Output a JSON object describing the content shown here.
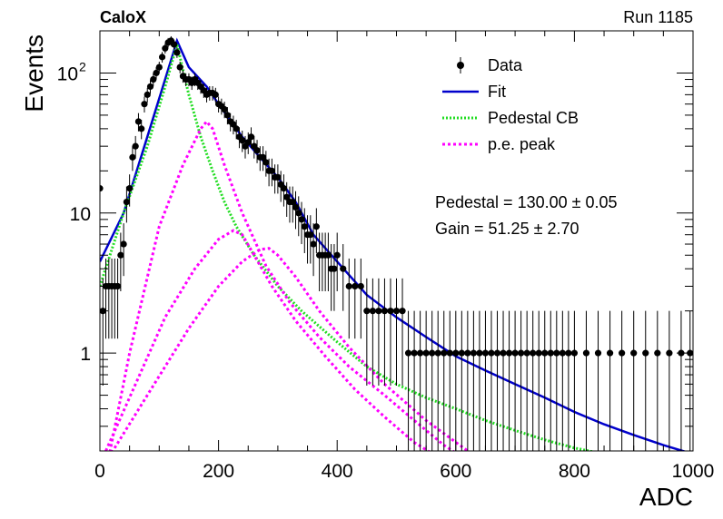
{
  "header": {
    "experiment": "CaloX",
    "run": "Run 1185"
  },
  "stats": {
    "pedestal": "Pedestal = 130.00 ± 0.05",
    "gain": "Gain = 51.25 ± 2.70"
  },
  "colors": {
    "data": "#000000",
    "fit": "#0000cc",
    "pedestal_cb": "#22dd22",
    "pe_peak": "#ff00ff"
  },
  "chart_data": {
    "type": "scatter",
    "title": "",
    "xlabel": "ADC",
    "ylabel": "Events",
    "xlim": [
      0,
      1000
    ],
    "ylim": [
      0.2,
      200
    ],
    "yscale": "log",
    "legend_position": "top-right",
    "x_ticks": [
      {
        "value": 0,
        "label": "0"
      },
      {
        "value": 200,
        "label": "200"
      },
      {
        "value": 400,
        "label": "400"
      },
      {
        "value": 600,
        "label": "600"
      },
      {
        "value": 800,
        "label": "800"
      },
      {
        "value": 1000,
        "label": "1000"
      }
    ],
    "y_ticks": [
      {
        "value": 1,
        "label": "1"
      },
      {
        "value": 10,
        "label": "10"
      },
      {
        "value": 100,
        "label": "10",
        "sup": "2"
      }
    ],
    "legend": [
      {
        "label": "Data",
        "kind": "points"
      },
      {
        "label": "Fit",
        "kind": "fit"
      },
      {
        "label": "Pedestal CB",
        "kind": "ped"
      },
      {
        "label": "p.e. peak",
        "kind": "pe"
      }
    ],
    "series": [
      {
        "name": "Data",
        "kind": "points",
        "points": [
          [
            0,
            15
          ],
          [
            5,
            2
          ],
          [
            10,
            3
          ],
          [
            15,
            3
          ],
          [
            20,
            3
          ],
          [
            25,
            3
          ],
          [
            30,
            3
          ],
          [
            35,
            5
          ],
          [
            40,
            6
          ],
          [
            45,
            12
          ],
          [
            50,
            15
          ],
          [
            55,
            25
          ],
          [
            60,
            30
          ],
          [
            65,
            45
          ],
          [
            70,
            40
          ],
          [
            75,
            60
          ],
          [
            80,
            70
          ],
          [
            85,
            80
          ],
          [
            90,
            90
          ],
          [
            95,
            100
          ],
          [
            100,
            110
          ],
          [
            105,
            130
          ],
          [
            110,
            150
          ],
          [
            115,
            165
          ],
          [
            120,
            170
          ],
          [
            125,
            160
          ],
          [
            130,
            140
          ],
          [
            135,
            110
          ],
          [
            140,
            95
          ],
          [
            145,
            90
          ],
          [
            150,
            90
          ],
          [
            155,
            85
          ],
          [
            160,
            90
          ],
          [
            165,
            85
          ],
          [
            170,
            80
          ],
          [
            175,
            75
          ],
          [
            180,
            70
          ],
          [
            185,
            72
          ],
          [
            190,
            72
          ],
          [
            195,
            70
          ],
          [
            200,
            60
          ],
          [
            205,
            58
          ],
          [
            210,
            55
          ],
          [
            215,
            50
          ],
          [
            220,
            45
          ],
          [
            225,
            43
          ],
          [
            230,
            40
          ],
          [
            235,
            35
          ],
          [
            240,
            33
          ],
          [
            245,
            30
          ],
          [
            250,
            32
          ],
          [
            255,
            35
          ],
          [
            260,
            30
          ],
          [
            265,
            28
          ],
          [
            270,
            25
          ],
          [
            275,
            25
          ],
          [
            280,
            23
          ],
          [
            285,
            20
          ],
          [
            290,
            20
          ],
          [
            295,
            18
          ],
          [
            300,
            18
          ],
          [
            305,
            16
          ],
          [
            310,
            15
          ],
          [
            315,
            13
          ],
          [
            320,
            12
          ],
          [
            325,
            12
          ],
          [
            330,
            11
          ],
          [
            335,
            10
          ],
          [
            340,
            9
          ],
          [
            345,
            8
          ],
          [
            350,
            7
          ],
          [
            355,
            7
          ],
          [
            360,
            6
          ],
          [
            365,
            8
          ],
          [
            370,
            5
          ],
          [
            375,
            5
          ],
          [
            380,
            5
          ],
          [
            385,
            5
          ],
          [
            390,
            4
          ],
          [
            395,
            4
          ],
          [
            400,
            5
          ],
          [
            410,
            4
          ],
          [
            420,
            3
          ],
          [
            430,
            3
          ],
          [
            440,
            3
          ],
          [
            450,
            2
          ],
          [
            460,
            2
          ],
          [
            470,
            2
          ],
          [
            480,
            2
          ],
          [
            490,
            2
          ],
          [
            500,
            2
          ],
          [
            510,
            2
          ],
          [
            520,
            1
          ],
          [
            530,
            1
          ],
          [
            540,
            1
          ],
          [
            550,
            1
          ],
          [
            560,
            1
          ],
          [
            570,
            1
          ],
          [
            580,
            1
          ],
          [
            590,
            1
          ],
          [
            600,
            1
          ],
          [
            610,
            1
          ],
          [
            620,
            1
          ],
          [
            630,
            1
          ],
          [
            640,
            1
          ],
          [
            650,
            1
          ],
          [
            660,
            1
          ],
          [
            670,
            1
          ],
          [
            680,
            1
          ],
          [
            690,
            1
          ],
          [
            700,
            1
          ],
          [
            710,
            1
          ],
          [
            720,
            1
          ],
          [
            730,
            1
          ],
          [
            740,
            1
          ],
          [
            750,
            1
          ],
          [
            760,
            1
          ],
          [
            770,
            1
          ],
          [
            780,
            1
          ],
          [
            790,
            1
          ],
          [
            800,
            1
          ],
          [
            820,
            1
          ],
          [
            840,
            1
          ],
          [
            860,
            1
          ],
          [
            880,
            1
          ],
          [
            900,
            1
          ],
          [
            920,
            1
          ],
          [
            940,
            1
          ],
          [
            960,
            1
          ],
          [
            980,
            1
          ],
          [
            995,
            1
          ]
        ]
      },
      {
        "name": "Fit",
        "kind": "fit",
        "points": [
          [
            0,
            4.5
          ],
          [
            40,
            10
          ],
          [
            80,
            35
          ],
          [
            110,
            90
          ],
          [
            130,
            170
          ],
          [
            150,
            110
          ],
          [
            180,
            80
          ],
          [
            200,
            60
          ],
          [
            240,
            35
          ],
          [
            270,
            25
          ],
          [
            300,
            18
          ],
          [
            330,
            12
          ],
          [
            360,
            7
          ],
          [
            400,
            4.5
          ],
          [
            450,
            2.6
          ],
          [
            500,
            1.8
          ],
          [
            550,
            1.3
          ],
          [
            600,
            0.95
          ],
          [
            650,
            0.75
          ],
          [
            700,
            0.6
          ],
          [
            750,
            0.48
          ],
          [
            800,
            0.38
          ],
          [
            850,
            0.31
          ],
          [
            900,
            0.26
          ],
          [
            950,
            0.22
          ],
          [
            1000,
            0.19
          ]
        ]
      },
      {
        "name": "Pedestal CB",
        "kind": "ped",
        "points": [
          [
            0,
            3
          ],
          [
            40,
            10
          ],
          [
            80,
            30
          ],
          [
            110,
            80
          ],
          [
            130,
            160
          ],
          [
            150,
            70
          ],
          [
            170,
            35
          ],
          [
            190,
            20
          ],
          [
            210,
            12
          ],
          [
            230,
            8
          ],
          [
            260,
            5
          ],
          [
            300,
            3
          ],
          [
            340,
            2
          ],
          [
            400,
            1.2
          ],
          [
            450,
            0.8
          ],
          [
            500,
            0.6
          ],
          [
            550,
            0.48
          ],
          [
            600,
            0.4
          ],
          [
            650,
            0.33
          ],
          [
            700,
            0.28
          ],
          [
            750,
            0.24
          ],
          [
            800,
            0.21
          ],
          [
            850,
            0.19
          ],
          [
            900,
            0.17
          ]
        ]
      },
      {
        "name": "p.e. peak",
        "kind": "pe",
        "points": [
          [
            15,
            0.18
          ],
          [
            50,
            1.0
          ],
          [
            100,
            8
          ],
          [
            140,
            22
          ],
          [
            170,
            40
          ],
          [
            180,
            45
          ],
          [
            190,
            40
          ],
          [
            210,
            22
          ],
          [
            240,
            10
          ],
          [
            280,
            4.2
          ],
          [
            320,
            2.3
          ],
          [
            370,
            1.3
          ],
          [
            420,
            0.8
          ],
          [
            480,
            0.5
          ],
          [
            530,
            0.33
          ],
          [
            580,
            0.22
          ],
          [
            620,
            0.17
          ]
        ]
      },
      {
        "name": "p.e. peak",
        "kind": "pe",
        "points": [
          [
            10,
            0.2
          ],
          [
            60,
            0.6
          ],
          [
            110,
            1.8
          ],
          [
            160,
            4
          ],
          [
            200,
            6.5
          ],
          [
            225,
            7.5
          ],
          [
            240,
            7
          ],
          [
            260,
            5
          ],
          [
            290,
            3
          ],
          [
            330,
            1.7
          ],
          [
            380,
            0.95
          ],
          [
            430,
            0.55
          ],
          [
            480,
            0.35
          ],
          [
            530,
            0.23
          ],
          [
            580,
            0.17
          ],
          [
            600,
            0.15
          ]
        ]
      },
      {
        "name": "p.e. peak",
        "kind": "pe",
        "points": [
          [
            15,
            0.18
          ],
          [
            80,
            0.5
          ],
          [
            150,
            1.5
          ],
          [
            200,
            3
          ],
          [
            240,
            4.5
          ],
          [
            270,
            5.5
          ],
          [
            285,
            5.6
          ],
          [
            300,
            5
          ],
          [
            330,
            3.5
          ],
          [
            370,
            2
          ],
          [
            420,
            1.1
          ],
          [
            480,
            0.6
          ],
          [
            550,
            0.33
          ],
          [
            620,
            0.2
          ],
          [
            650,
            0.16
          ]
        ]
      }
    ]
  }
}
